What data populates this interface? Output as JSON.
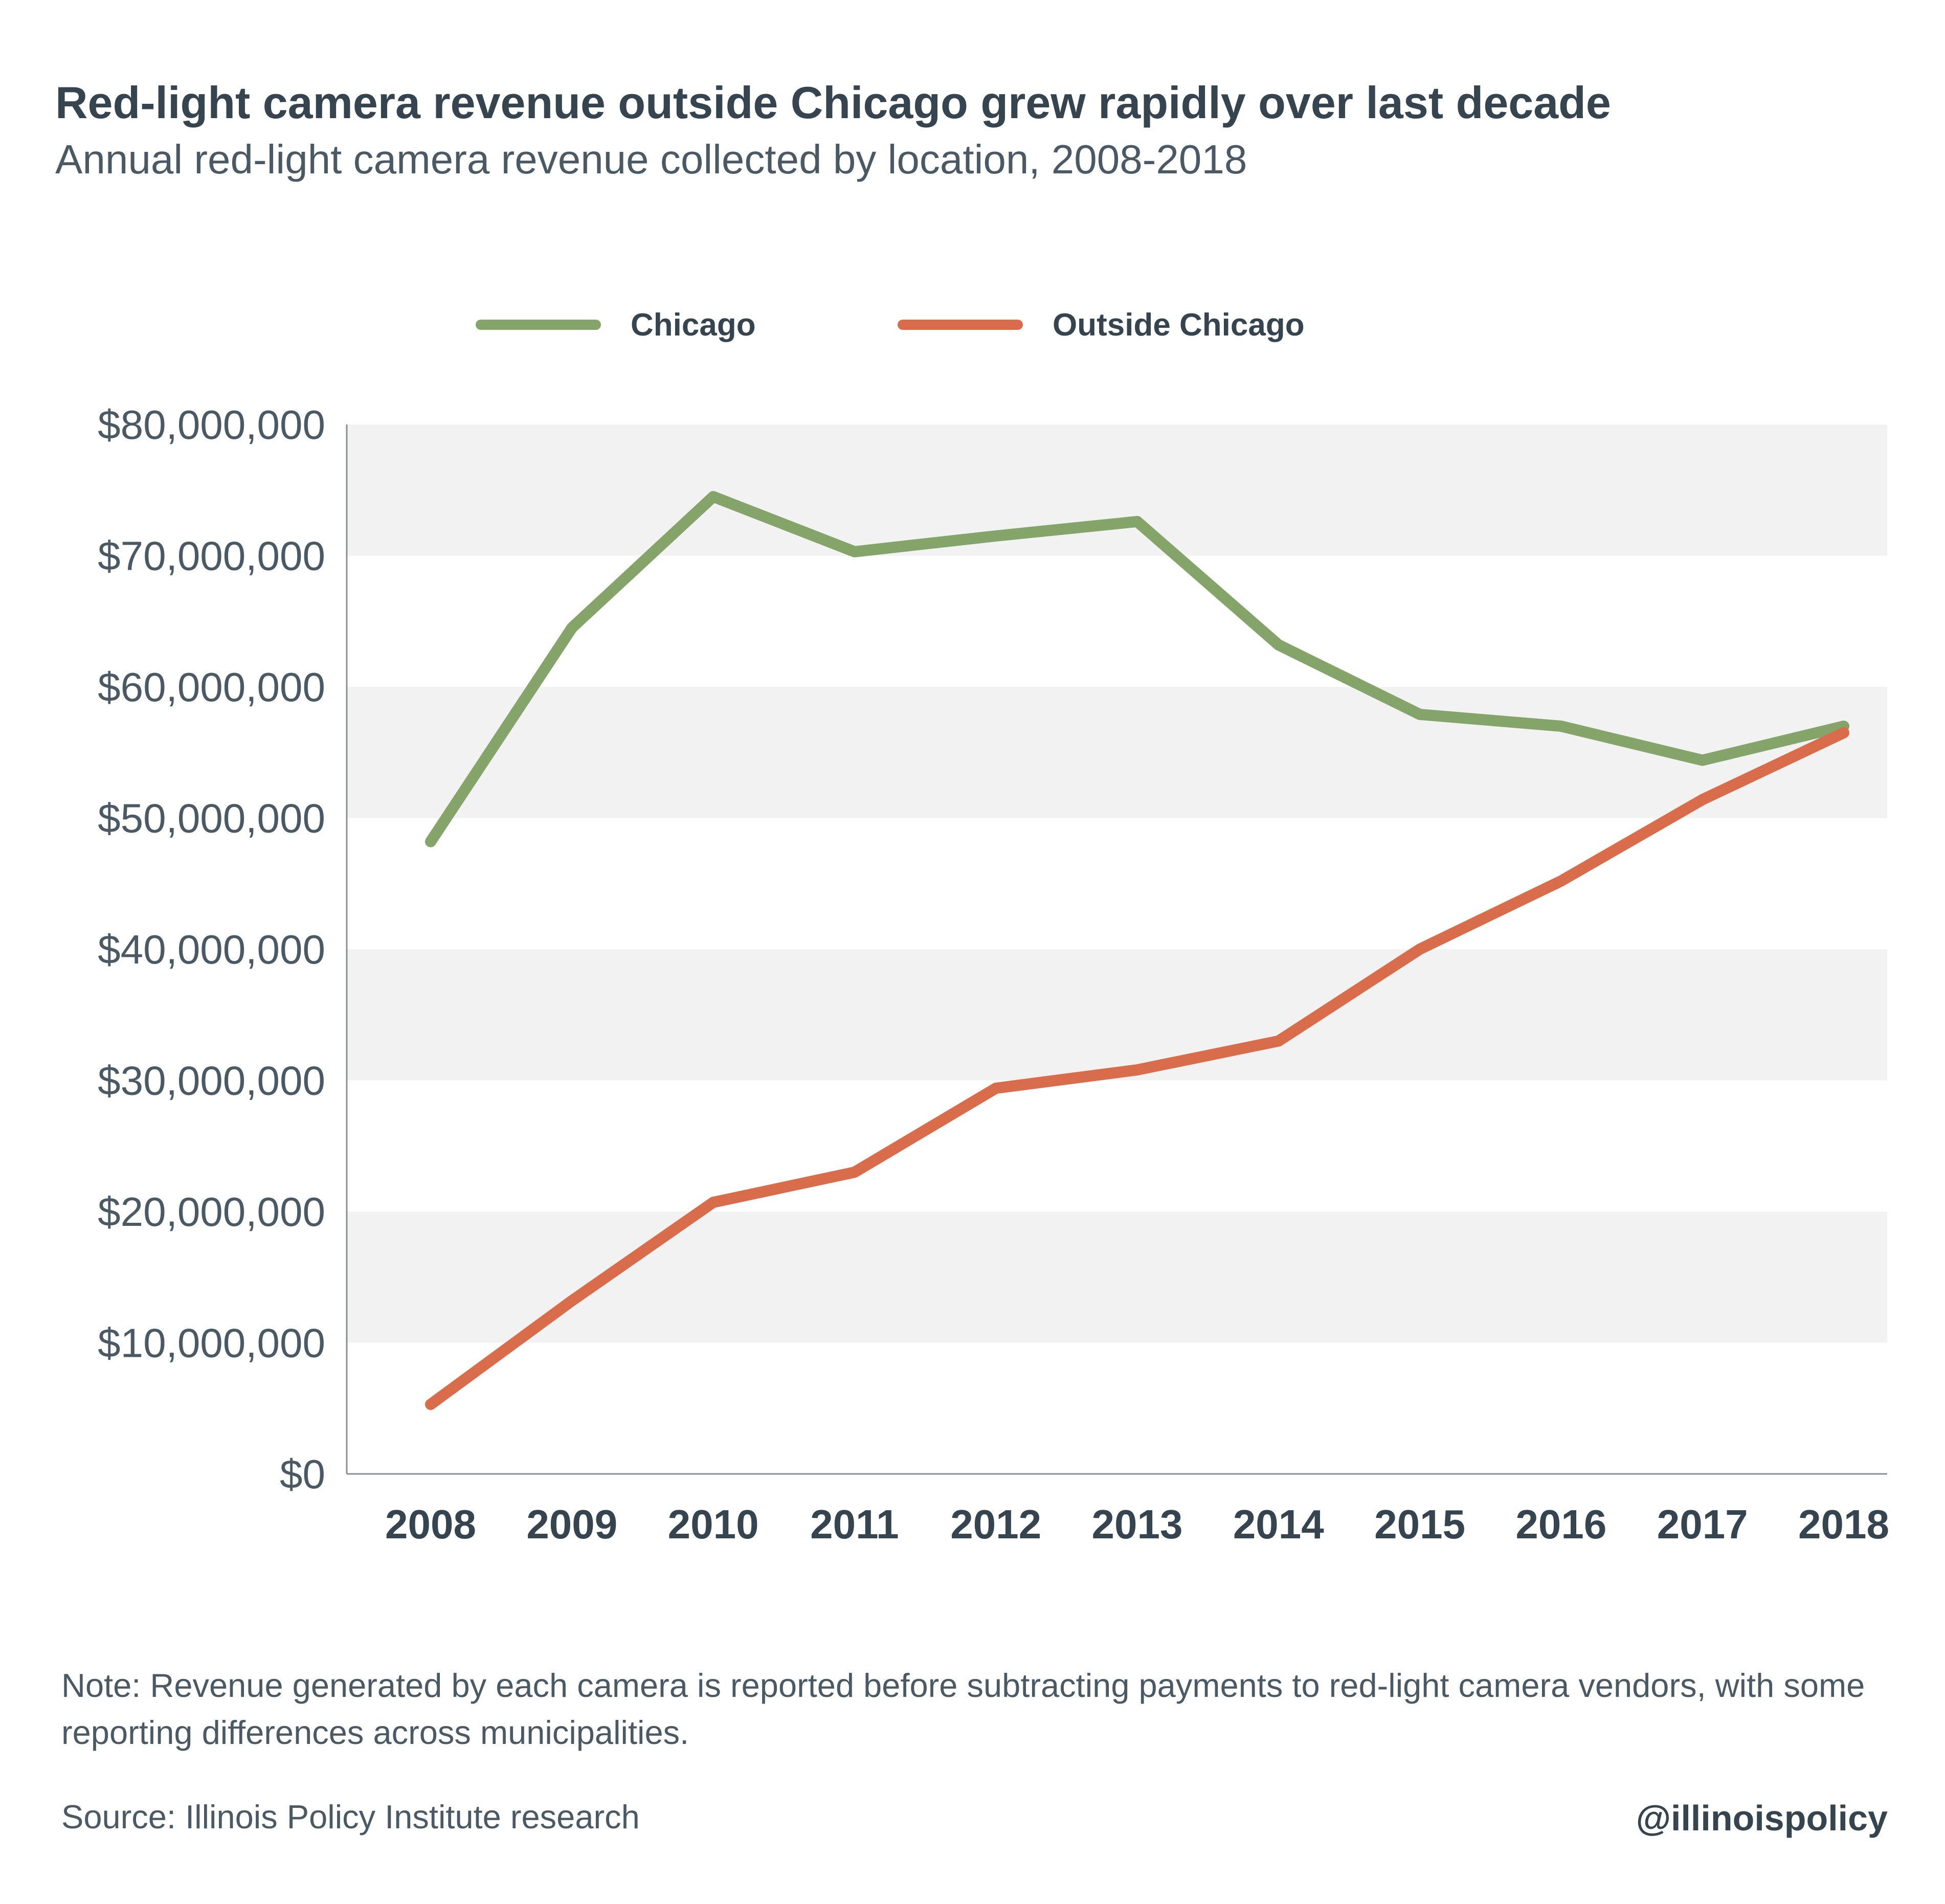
{
  "header": {
    "title": "Red-light camera revenue outside Chicago grew rapidly over last decade",
    "subtitle": "Annual red-light camera revenue collected by location, 2008-2018"
  },
  "legend": {
    "items": [
      {
        "label": "Chicago",
        "color": "#84a46a"
      },
      {
        "label": "Outside Chicago",
        "color": "#d96c4a"
      }
    ]
  },
  "chart_data": {
    "type": "line",
    "title": "Red-light camera revenue outside Chicago grew rapidly over last decade",
    "subtitle": "Annual red-light camera revenue collected by location, 2008-2018",
    "categories": [
      "2008",
      "2009",
      "2010",
      "2011",
      "2012",
      "2013",
      "2014",
      "2015",
      "2016",
      "2017",
      "2018"
    ],
    "series": [
      {
        "name": "Chicago",
        "color": "#84a46a",
        "values": [
          48200000,
          64500000,
          74500000,
          70300000,
          71500000,
          72600000,
          63200000,
          57900000,
          57000000,
          54400000,
          57000000
        ]
      },
      {
        "name": "Outside Chicago",
        "color": "#d96c4a",
        "values": [
          5300000,
          13200000,
          20700000,
          23000000,
          29400000,
          30800000,
          33000000,
          40000000,
          45200000,
          51400000,
          56500000
        ]
      }
    ],
    "ylim": [
      0,
      80000000
    ],
    "yticks": [
      0,
      10000000,
      20000000,
      30000000,
      40000000,
      50000000,
      60000000,
      70000000,
      80000000
    ],
    "ytick_labels": [
      "$0",
      "$10,000,000",
      "$20,000,000",
      "$30,000,000",
      "$40,000,000",
      "$50,000,000",
      "$60,000,000",
      "$70,000,000",
      "$80,000,000"
    ],
    "xlabel": "",
    "ylabel": "",
    "grid": "alternating horizontal bands",
    "legend_position": "top-center"
  },
  "footer": {
    "note": "Note: Revenue generated by each camera is reported before subtracting payments to red-light camera vendors, with some reporting differences across municipalities.",
    "source": "Source: Illinois Policy Institute research",
    "handle": "@illinoispolicy"
  },
  "colors": {
    "band": "#f2f2f2",
    "axis": "#8a8f93",
    "text": "#35444f"
  }
}
